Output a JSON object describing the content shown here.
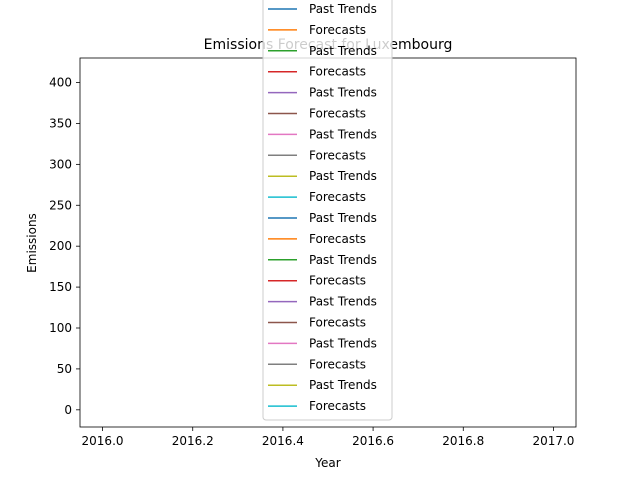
{
  "chart_data": {
    "type": "line",
    "title": "Emissions Forecast for Luxembourg",
    "xlabel": "Year",
    "ylabel": "Emissions",
    "xlim": [
      2015.95,
      2017.05
    ],
    "ylim": [
      -21,
      430
    ],
    "x_ticks": [
      2016.0,
      2016.2,
      2016.4,
      2016.6,
      2016.8,
      2017.0
    ],
    "x_tick_labels": [
      "2016.0",
      "2016.2",
      "2016.4",
      "2016.6",
      "2016.8",
      "2017.0"
    ],
    "y_ticks": [
      0,
      50,
      100,
      150,
      200,
      250,
      300,
      350,
      400
    ],
    "y_tick_labels": [
      "0",
      "50",
      "100",
      "150",
      "200",
      "250",
      "300",
      "350",
      "400"
    ],
    "grid": false,
    "legend_position": "center",
    "series": [
      {
        "name": "Past Trends",
        "color": "#1f77b4",
        "values": []
      },
      {
        "name": "Forecasts",
        "color": "#ff7f0e",
        "values": []
      },
      {
        "name": "Past Trends",
        "color": "#2ca02c",
        "values": []
      },
      {
        "name": "Forecasts",
        "color": "#d62728",
        "values": []
      },
      {
        "name": "Past Trends",
        "color": "#9467bd",
        "values": []
      },
      {
        "name": "Forecasts",
        "color": "#8c564b",
        "values": []
      },
      {
        "name": "Past Trends",
        "color": "#e377c2",
        "values": []
      },
      {
        "name": "Forecasts",
        "color": "#7f7f7f",
        "values": []
      },
      {
        "name": "Past Trends",
        "color": "#bcbd22",
        "values": []
      },
      {
        "name": "Forecasts",
        "color": "#17becf",
        "values": []
      },
      {
        "name": "Past Trends",
        "color": "#1f77b4",
        "values": []
      },
      {
        "name": "Forecasts",
        "color": "#ff7f0e",
        "values": []
      },
      {
        "name": "Past Trends",
        "color": "#2ca02c",
        "values": []
      },
      {
        "name": "Forecasts",
        "color": "#d62728",
        "values": []
      },
      {
        "name": "Past Trends",
        "color": "#9467bd",
        "values": []
      },
      {
        "name": "Forecasts",
        "color": "#8c564b",
        "values": []
      },
      {
        "name": "Past Trends",
        "color": "#e377c2",
        "values": []
      },
      {
        "name": "Forecasts",
        "color": "#7f7f7f",
        "values": []
      },
      {
        "name": "Past Trends",
        "color": "#bcbd22",
        "values": []
      },
      {
        "name": "Forecasts",
        "color": "#17becf",
        "values": []
      }
    ]
  }
}
